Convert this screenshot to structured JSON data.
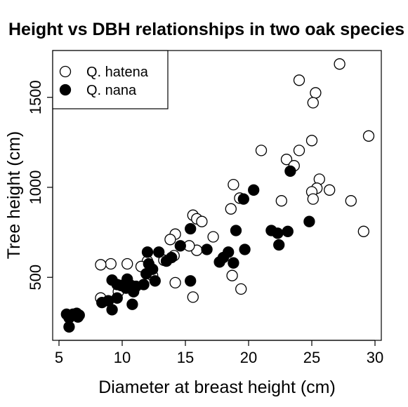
{
  "chart_data": {
    "type": "scatter",
    "title": "Height vs DBH relationships in two oak species",
    "xlabel": "Diameter at breast height (cm)",
    "ylabel": "Tree height (cm)",
    "xlim": [
      4.5,
      30.5
    ],
    "ylim": [
      150,
      1760
    ],
    "xticks": [
      5,
      10,
      15,
      20,
      25,
      30
    ],
    "yticks": [
      500,
      1000,
      1500
    ],
    "grid": false,
    "legend_position": "top-left",
    "series": [
      {
        "name": "Q. hatena",
        "marker": "open-circle",
        "color": "#000000",
        "points": [
          [
            27.2,
            1685
          ],
          [
            24.0,
            1595
          ],
          [
            25.3,
            1525
          ],
          [
            25.1,
            1470
          ],
          [
            29.5,
            1285
          ],
          [
            25.0,
            1260
          ],
          [
            21.0,
            1205
          ],
          [
            24.0,
            1205
          ],
          [
            23.0,
            1155
          ],
          [
            23.6,
            1120
          ],
          [
            25.6,
            1045
          ],
          [
            25.4,
            995
          ],
          [
            26.4,
            985
          ],
          [
            25.0,
            975
          ],
          [
            18.8,
            1015
          ],
          [
            19.3,
            940
          ],
          [
            22.6,
            925
          ],
          [
            25.1,
            935
          ],
          [
            28.1,
            925
          ],
          [
            18.6,
            880
          ],
          [
            15.6,
            845
          ],
          [
            15.9,
            825
          ],
          [
            16.3,
            810
          ],
          [
            17.2,
            725
          ],
          [
            14.2,
            740
          ],
          [
            13.8,
            710
          ],
          [
            15.9,
            650
          ],
          [
            15.3,
            675
          ],
          [
            14.1,
            620
          ],
          [
            13.3,
            595
          ],
          [
            29.1,
            755
          ],
          [
            10.4,
            575
          ],
          [
            12.0,
            590
          ],
          [
            11.5,
            560
          ],
          [
            9.1,
            575
          ],
          [
            8.3,
            570
          ],
          [
            18.7,
            510
          ],
          [
            14.2,
            470
          ],
          [
            19.4,
            435
          ],
          [
            15.6,
            390
          ],
          [
            8.3,
            385
          ],
          [
            12.4,
            510
          ],
          [
            9.7,
            420
          ]
        ]
      },
      {
        "name": "Q. nana",
        "marker": "filled-circle",
        "color": "#000000",
        "points": [
          [
            23.3,
            1090
          ],
          [
            20.4,
            985
          ],
          [
            19.6,
            935
          ],
          [
            24.8,
            810
          ],
          [
            19.0,
            760
          ],
          [
            21.8,
            760
          ],
          [
            22.3,
            745
          ],
          [
            22.4,
            680
          ],
          [
            23.1,
            755
          ],
          [
            15.4,
            770
          ],
          [
            14.6,
            675
          ],
          [
            16.7,
            655
          ],
          [
            18.4,
            640
          ],
          [
            19.7,
            655
          ],
          [
            18.0,
            610
          ],
          [
            17.7,
            585
          ],
          [
            18.8,
            580
          ],
          [
            13.9,
            610
          ],
          [
            12.0,
            640
          ],
          [
            12.9,
            640
          ],
          [
            13.5,
            590
          ],
          [
            12.1,
            575
          ],
          [
            12.4,
            545
          ],
          [
            11.9,
            520
          ],
          [
            12.6,
            480
          ],
          [
            15.4,
            480
          ],
          [
            9.2,
            485
          ],
          [
            10.4,
            490
          ],
          [
            9.6,
            460
          ],
          [
            11.1,
            450
          ],
          [
            10.7,
            455
          ],
          [
            10.3,
            440
          ],
          [
            10.9,
            420
          ],
          [
            11.7,
            460
          ],
          [
            9.9,
            455
          ],
          [
            8.4,
            360
          ],
          [
            8.9,
            370
          ],
          [
            9.6,
            385
          ],
          [
            9.2,
            320
          ],
          [
            10.8,
            350
          ],
          [
            5.6,
            295
          ],
          [
            6.1,
            295
          ],
          [
            6.4,
            300
          ],
          [
            6.6,
            290
          ],
          [
            5.8,
            275
          ],
          [
            6.5,
            280
          ],
          [
            5.8,
            225
          ]
        ]
      }
    ]
  }
}
